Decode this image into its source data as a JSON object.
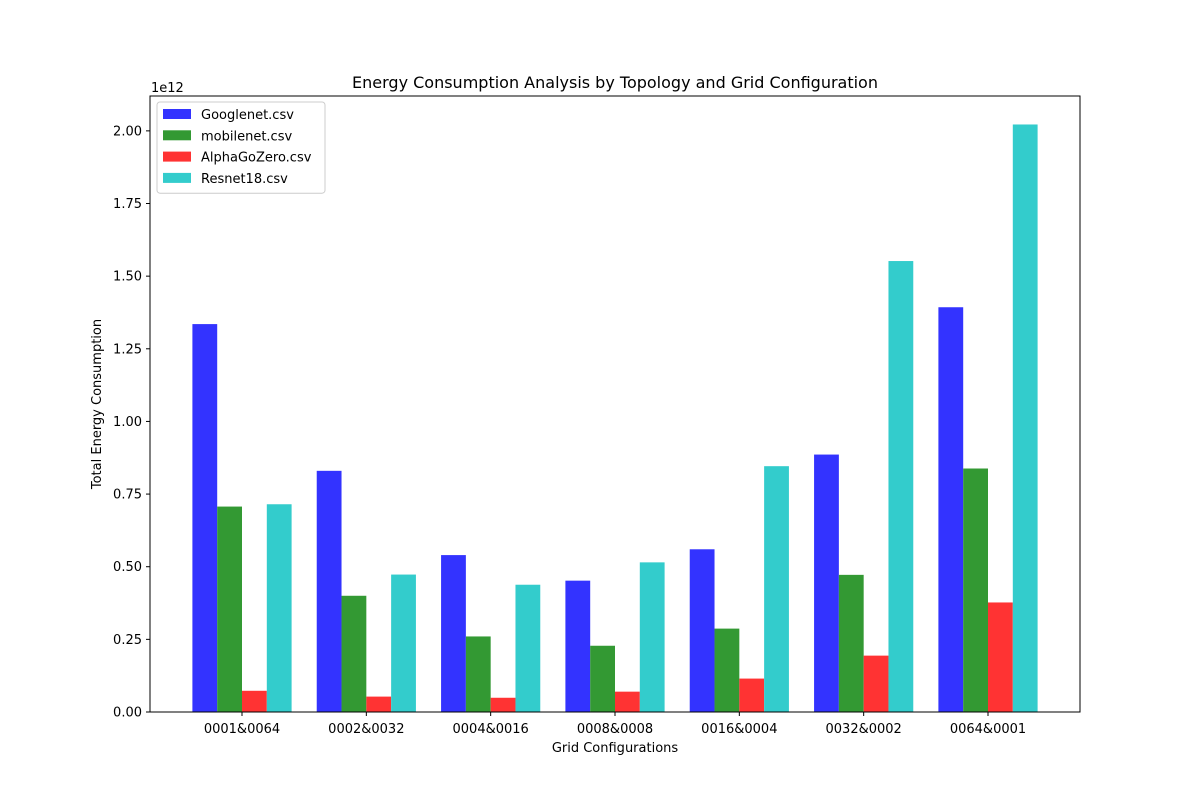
{
  "chart_data": {
    "type": "bar",
    "title": "Energy Consumption Analysis by Topology and Grid Configuration",
    "xlabel": "Grid Configurations",
    "ylabel": "Total Energy Consumption",
    "y_offset_label": "1e12",
    "y_scale_exponent": 12,
    "ylim": [
      0,
      2.12
    ],
    "yticks": [
      0.0,
      0.25,
      0.5,
      0.75,
      1.0,
      1.25,
      1.5,
      1.75,
      2.0
    ],
    "ytick_labels": [
      "0.00",
      "0.25",
      "0.50",
      "0.75",
      "1.00",
      "1.25",
      "1.50",
      "1.75",
      "2.00"
    ],
    "grid": false,
    "legend_position": "top-left",
    "categories": [
      "0001&0064",
      "0002&0032",
      "0004&0016",
      "0008&0008",
      "0016&0004",
      "0032&0002",
      "0064&0001"
    ],
    "series": [
      {
        "name": "Googlenet.csv",
        "color": "#3333ff",
        "values": [
          1.335,
          0.83,
          0.54,
          0.452,
          0.56,
          0.886,
          1.393
        ]
      },
      {
        "name": "mobilenet.csv",
        "color": "#339933",
        "values": [
          0.707,
          0.4,
          0.26,
          0.228,
          0.287,
          0.472,
          0.838
        ]
      },
      {
        "name": "AlphaGoZero.csv",
        "color": "#ff3333",
        "values": [
          0.073,
          0.053,
          0.049,
          0.07,
          0.115,
          0.194,
          0.377
        ]
      },
      {
        "name": "Resnet18.csv",
        "color": "#33cccc",
        "values": [
          0.715,
          0.473,
          0.438,
          0.515,
          0.846,
          1.552,
          2.022
        ]
      }
    ]
  }
}
